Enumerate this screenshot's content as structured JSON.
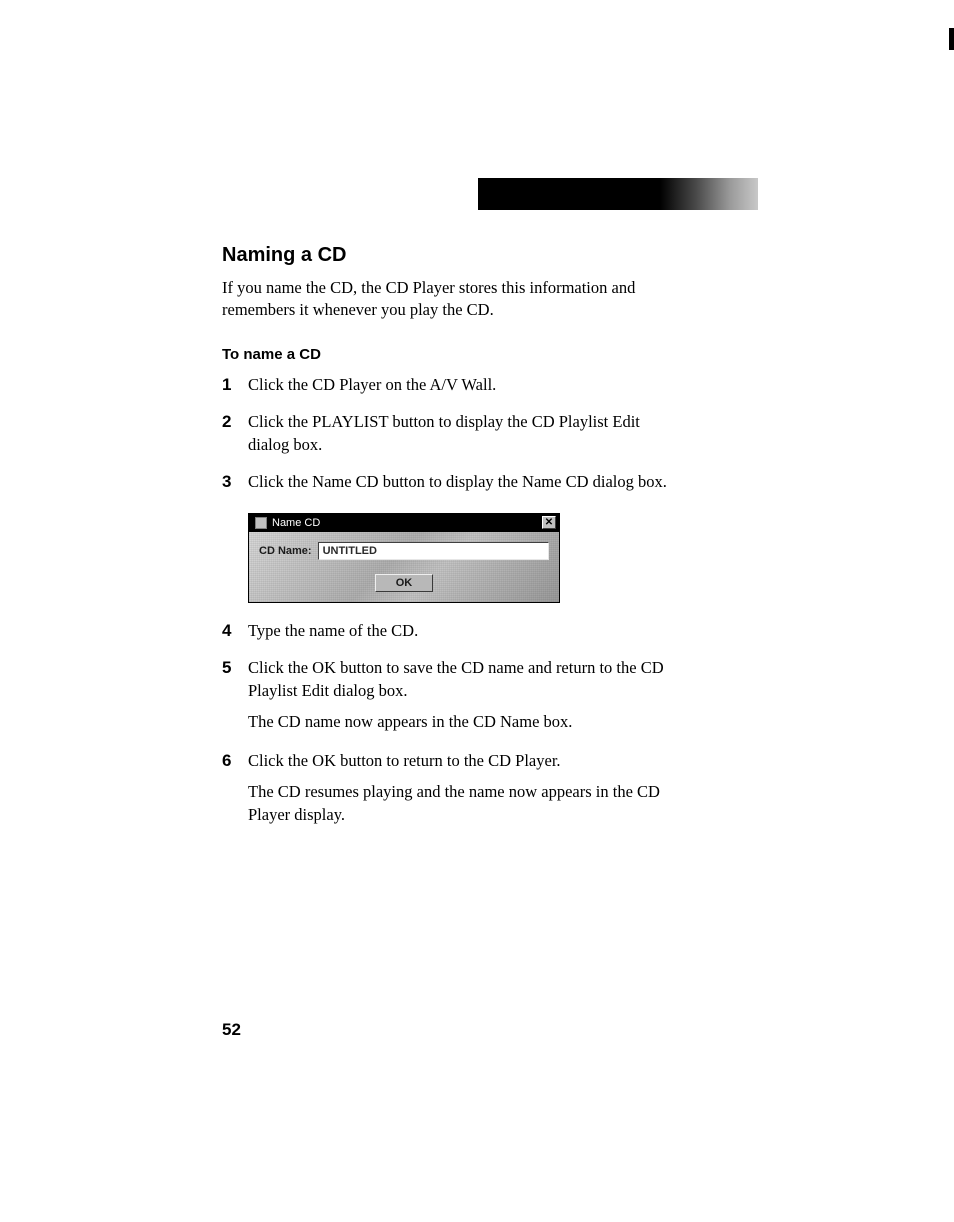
{
  "page_number": "52",
  "section_title": "Naming a CD",
  "intro": "If you name the CD, the CD Player stores this information and remembers it whenever you play the CD.",
  "sub_title": "To name a CD",
  "steps": [
    {
      "n": "1",
      "lines": [
        "Click the CD Player on the A/V Wall."
      ]
    },
    {
      "n": "2",
      "lines": [
        "Click the PLAYLIST button to display the CD Playlist Edit dialog box."
      ]
    },
    {
      "n": "3",
      "lines": [
        "Click the Name CD button to display the Name CD dialog box."
      ]
    },
    {
      "n": "4",
      "lines": [
        "Type the name of the CD."
      ]
    },
    {
      "n": "5",
      "lines": [
        "Click the OK button to save the CD name and return to the CD Playlist Edit dialog box.",
        "The CD name now appears in the CD Name box."
      ]
    },
    {
      "n": "6",
      "lines": [
        "Click the OK button to return to the CD Player.",
        "The CD resumes playing and the name now appears in the CD Player display."
      ]
    }
  ],
  "dialog": {
    "title": "Name CD",
    "close_glyph": "✕",
    "field_label": "CD Name:",
    "field_value": "UNTITLED",
    "ok_label": "OK",
    "colors": {
      "titlebar_bg": "#000000",
      "titlebar_fg": "#ffffff",
      "body_bg": "#bdbdbd",
      "input_bg": "#ffffff",
      "button_bg": "#b8b8b8"
    }
  },
  "header_bar": {
    "gradient_from": "#000000",
    "gradient_to": "#c8c8c8"
  }
}
